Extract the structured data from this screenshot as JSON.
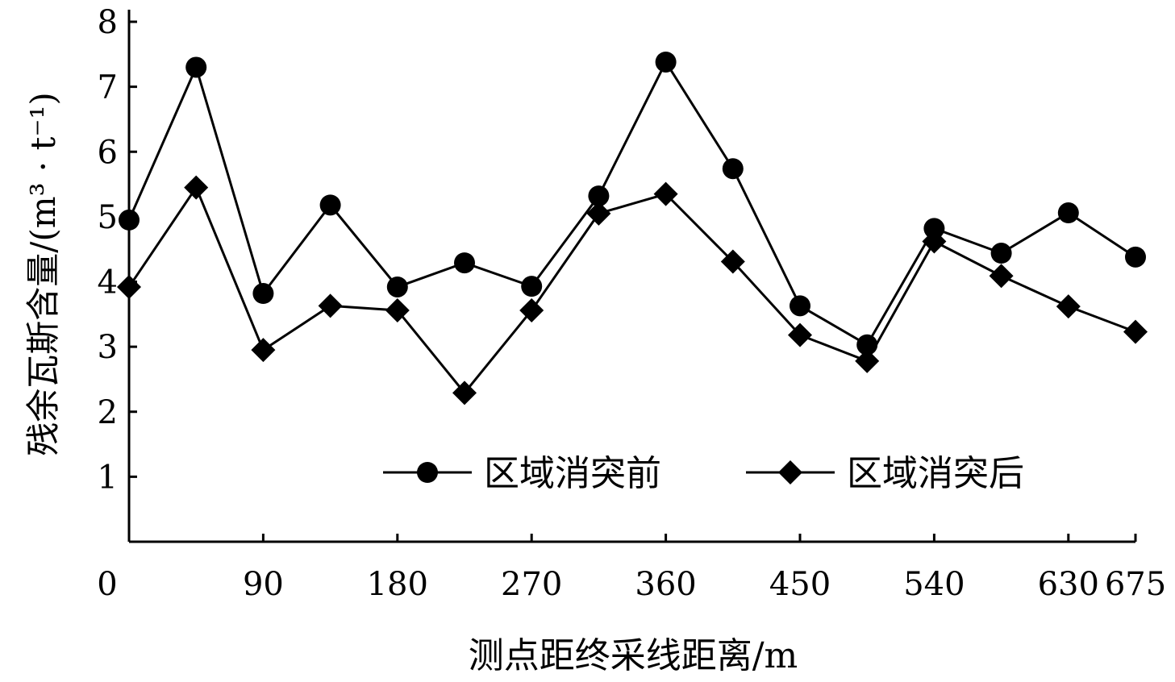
{
  "chart_data": {
    "type": "line",
    "title": "",
    "xlabel": "测点距终采线距离/m",
    "ylabel": "残余瓦斯含量/(m³ · t⁻¹)",
    "x": [
      0,
      45,
      90,
      135,
      180,
      225,
      270,
      315,
      360,
      405,
      450,
      495,
      540,
      585,
      630,
      675
    ],
    "x_tick_labels": [
      "0",
      "90",
      "180",
      "270",
      "360",
      "450",
      "540",
      "630",
      "675"
    ],
    "x_ticks": [
      0,
      90,
      180,
      270,
      360,
      450,
      540,
      630,
      675
    ],
    "y_ticks": [
      1,
      2,
      3,
      4,
      5,
      6,
      7,
      8
    ],
    "ylim": [
      0,
      8
    ],
    "xlim": [
      0,
      675
    ],
    "grid": false,
    "legend_position": "bottom-right",
    "series": [
      {
        "name": "区域消突前",
        "marker": "circle",
        "color": "#000000",
        "values": [
          4.95,
          7.3,
          3.82,
          5.18,
          3.92,
          4.29,
          3.93,
          5.32,
          7.38,
          5.74,
          3.63,
          3.03,
          4.82,
          4.44,
          5.06,
          4.38
        ]
      },
      {
        "name": "区域消突后",
        "marker": "diamond",
        "color": "#000000",
        "values": [
          3.92,
          5.45,
          2.95,
          3.63,
          3.56,
          2.29,
          3.56,
          5.05,
          5.35,
          4.31,
          3.18,
          2.78,
          4.62,
          4.09,
          3.62,
          3.23
        ]
      }
    ]
  }
}
